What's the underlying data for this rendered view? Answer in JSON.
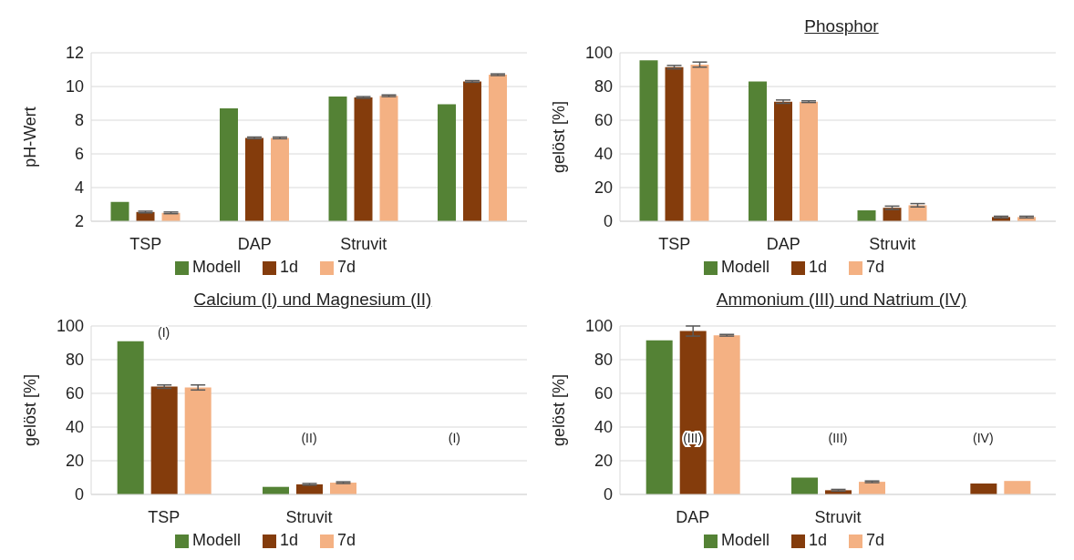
{
  "chart_data": [
    {
      "type": "bar",
      "ylabel": "pH-Wert",
      "categories": [
        "TSP",
        "DAP",
        "Struvit",
        null
      ],
      "ylim": [
        2,
        12
      ],
      "yticks": [
        2,
        4,
        6,
        8,
        10,
        12
      ],
      "grid": "y",
      "legend": "bottom",
      "series": [
        {
          "name": "Modell",
          "color": "#548235",
          "values": [
            3.15,
            8.7,
            9.4,
            8.95
          ]
        },
        {
          "name": "1d",
          "color": "#843c0c",
          "values": [
            2.55,
            6.95,
            9.35,
            10.3
          ],
          "errors": [
            0.05,
            0.05,
            0.05,
            0.05
          ]
        },
        {
          "name": "7d",
          "color": "#f4b183",
          "values": [
            2.5,
            6.95,
            9.45,
            10.7
          ],
          "errors": [
            0.05,
            0.05,
            0.05,
            0.05
          ]
        }
      ]
    },
    {
      "type": "bar",
      "title": "Phosphor",
      "ylabel": "gelöst [%]",
      "categories": [
        "TSP",
        "DAP",
        "Struvit",
        null
      ],
      "ylim": [
        0,
        100
      ],
      "yticks": [
        0,
        20,
        40,
        60,
        80,
        100
      ],
      "grid": "y",
      "legend": "bottom",
      "series": [
        {
          "name": "Modell",
          "color": "#548235",
          "values": [
            95.5,
            83,
            6.5,
            null
          ]
        },
        {
          "name": "1d",
          "color": "#843c0c",
          "values": [
            91.5,
            71,
            8,
            2.5
          ],
          "errors": [
            1,
            1,
            1,
            0.5
          ]
        },
        {
          "name": "7d",
          "color": "#f4b183",
          "values": [
            93,
            71,
            9.5,
            2.5
          ],
          "errors": [
            1.5,
            0.5,
            1,
            0.5
          ]
        }
      ]
    },
    {
      "type": "bar",
      "title": "Calcium (I) und Magnesium (II)",
      "ylabel": "gelöst [%]",
      "categories": [
        "TSP",
        "Struvit",
        null
      ],
      "ylim": [
        0,
        100
      ],
      "yticks": [
        0,
        20,
        40,
        60,
        80,
        100
      ],
      "grid": "y",
      "legend": "bottom",
      "series": [
        {
          "name": "Modell",
          "color": "#548235",
          "values": [
            91,
            4.5,
            null
          ]
        },
        {
          "name": "1d",
          "color": "#843c0c",
          "values": [
            64,
            6,
            null
          ],
          "errors": [
            1,
            0.5,
            null
          ]
        },
        {
          "name": "7d",
          "color": "#f4b183",
          "values": [
            63.5,
            7,
            null
          ],
          "errors": [
            1.5,
            0.5,
            null
          ]
        }
      ],
      "annotations": [
        "(I)",
        "(II)",
        "(I)"
      ]
    },
    {
      "type": "bar",
      "title": "Ammonium (III) und Natrium (IV)",
      "ylabel": "gelöst [%]",
      "categories": [
        "DAP",
        "Struvit",
        null
      ],
      "ylim": [
        0,
        100
      ],
      "yticks": [
        0,
        20,
        40,
        60,
        80,
        100
      ],
      "grid": "y",
      "legend": "bottom",
      "series": [
        {
          "name": "Modell",
          "color": "#548235",
          "values": [
            91.5,
            10,
            null
          ]
        },
        {
          "name": "1d",
          "color": "#843c0c",
          "values": [
            97,
            2.5,
            6.5
          ],
          "errors": [
            3,
            0.5,
            null
          ]
        },
        {
          "name": "7d",
          "color": "#f4b183",
          "values": [
            94.5,
            7.5,
            8
          ],
          "errors": [
            0.5,
            0.5,
            null
          ]
        }
      ],
      "annotations": [
        "(III)",
        "(III)",
        "(IV)"
      ]
    }
  ]
}
